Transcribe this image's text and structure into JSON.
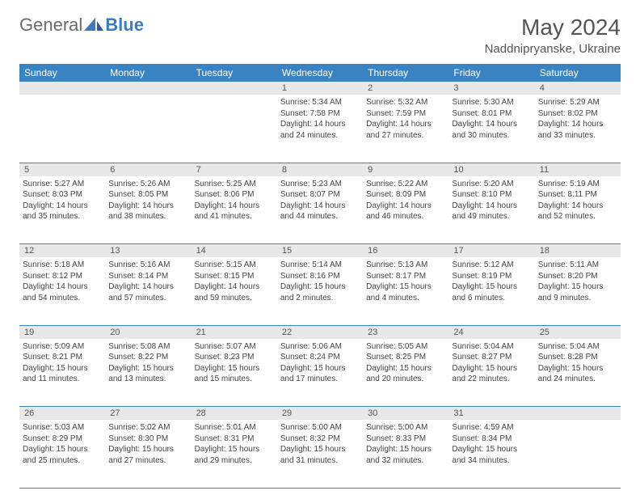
{
  "colors": {
    "header_bg": "#3a83c3",
    "header_text": "#ffffff",
    "daynum_bg": "#e8e8e8",
    "daynum_text": "#555555",
    "border": "#3a83c3",
    "body_text": "#444444",
    "logo_gray": "#6b6b6b",
    "logo_blue": "#3a7cbf"
  },
  "logo": {
    "part1": "General",
    "part2": "Blue"
  },
  "title": "May 2024",
  "location": "Naddnipryanske, Ukraine",
  "days_of_week": [
    "Sunday",
    "Monday",
    "Tuesday",
    "Wednesday",
    "Thursday",
    "Friday",
    "Saturday"
  ],
  "weeks": [
    [
      null,
      null,
      null,
      {
        "n": "1",
        "sr": "Sunrise: 5:34 AM",
        "ss": "Sunset: 7:58 PM",
        "dl1": "Daylight: 14 hours",
        "dl2": "and 24 minutes."
      },
      {
        "n": "2",
        "sr": "Sunrise: 5:32 AM",
        "ss": "Sunset: 7:59 PM",
        "dl1": "Daylight: 14 hours",
        "dl2": "and 27 minutes."
      },
      {
        "n": "3",
        "sr": "Sunrise: 5:30 AM",
        "ss": "Sunset: 8:01 PM",
        "dl1": "Daylight: 14 hours",
        "dl2": "and 30 minutes."
      },
      {
        "n": "4",
        "sr": "Sunrise: 5:29 AM",
        "ss": "Sunset: 8:02 PM",
        "dl1": "Daylight: 14 hours",
        "dl2": "and 33 minutes."
      }
    ],
    [
      {
        "n": "5",
        "sr": "Sunrise: 5:27 AM",
        "ss": "Sunset: 8:03 PM",
        "dl1": "Daylight: 14 hours",
        "dl2": "and 35 minutes."
      },
      {
        "n": "6",
        "sr": "Sunrise: 5:26 AM",
        "ss": "Sunset: 8:05 PM",
        "dl1": "Daylight: 14 hours",
        "dl2": "and 38 minutes."
      },
      {
        "n": "7",
        "sr": "Sunrise: 5:25 AM",
        "ss": "Sunset: 8:06 PM",
        "dl1": "Daylight: 14 hours",
        "dl2": "and 41 minutes."
      },
      {
        "n": "8",
        "sr": "Sunrise: 5:23 AM",
        "ss": "Sunset: 8:07 PM",
        "dl1": "Daylight: 14 hours",
        "dl2": "and 44 minutes."
      },
      {
        "n": "9",
        "sr": "Sunrise: 5:22 AM",
        "ss": "Sunset: 8:09 PM",
        "dl1": "Daylight: 14 hours",
        "dl2": "and 46 minutes."
      },
      {
        "n": "10",
        "sr": "Sunrise: 5:20 AM",
        "ss": "Sunset: 8:10 PM",
        "dl1": "Daylight: 14 hours",
        "dl2": "and 49 minutes."
      },
      {
        "n": "11",
        "sr": "Sunrise: 5:19 AM",
        "ss": "Sunset: 8:11 PM",
        "dl1": "Daylight: 14 hours",
        "dl2": "and 52 minutes."
      }
    ],
    [
      {
        "n": "12",
        "sr": "Sunrise: 5:18 AM",
        "ss": "Sunset: 8:12 PM",
        "dl1": "Daylight: 14 hours",
        "dl2": "and 54 minutes."
      },
      {
        "n": "13",
        "sr": "Sunrise: 5:16 AM",
        "ss": "Sunset: 8:14 PM",
        "dl1": "Daylight: 14 hours",
        "dl2": "and 57 minutes."
      },
      {
        "n": "14",
        "sr": "Sunrise: 5:15 AM",
        "ss": "Sunset: 8:15 PM",
        "dl1": "Daylight: 14 hours",
        "dl2": "and 59 minutes."
      },
      {
        "n": "15",
        "sr": "Sunrise: 5:14 AM",
        "ss": "Sunset: 8:16 PM",
        "dl1": "Daylight: 15 hours",
        "dl2": "and 2 minutes."
      },
      {
        "n": "16",
        "sr": "Sunrise: 5:13 AM",
        "ss": "Sunset: 8:17 PM",
        "dl1": "Daylight: 15 hours",
        "dl2": "and 4 minutes."
      },
      {
        "n": "17",
        "sr": "Sunrise: 5:12 AM",
        "ss": "Sunset: 8:19 PM",
        "dl1": "Daylight: 15 hours",
        "dl2": "and 6 minutes."
      },
      {
        "n": "18",
        "sr": "Sunrise: 5:11 AM",
        "ss": "Sunset: 8:20 PM",
        "dl1": "Daylight: 15 hours",
        "dl2": "and 9 minutes."
      }
    ],
    [
      {
        "n": "19",
        "sr": "Sunrise: 5:09 AM",
        "ss": "Sunset: 8:21 PM",
        "dl1": "Daylight: 15 hours",
        "dl2": "and 11 minutes."
      },
      {
        "n": "20",
        "sr": "Sunrise: 5:08 AM",
        "ss": "Sunset: 8:22 PM",
        "dl1": "Daylight: 15 hours",
        "dl2": "and 13 minutes."
      },
      {
        "n": "21",
        "sr": "Sunrise: 5:07 AM",
        "ss": "Sunset: 8:23 PM",
        "dl1": "Daylight: 15 hours",
        "dl2": "and 15 minutes."
      },
      {
        "n": "22",
        "sr": "Sunrise: 5:06 AM",
        "ss": "Sunset: 8:24 PM",
        "dl1": "Daylight: 15 hours",
        "dl2": "and 17 minutes."
      },
      {
        "n": "23",
        "sr": "Sunrise: 5:05 AM",
        "ss": "Sunset: 8:25 PM",
        "dl1": "Daylight: 15 hours",
        "dl2": "and 20 minutes."
      },
      {
        "n": "24",
        "sr": "Sunrise: 5:04 AM",
        "ss": "Sunset: 8:27 PM",
        "dl1": "Daylight: 15 hours",
        "dl2": "and 22 minutes."
      },
      {
        "n": "25",
        "sr": "Sunrise: 5:04 AM",
        "ss": "Sunset: 8:28 PM",
        "dl1": "Daylight: 15 hours",
        "dl2": "and 24 minutes."
      }
    ],
    [
      {
        "n": "26",
        "sr": "Sunrise: 5:03 AM",
        "ss": "Sunset: 8:29 PM",
        "dl1": "Daylight: 15 hours",
        "dl2": "and 25 minutes."
      },
      {
        "n": "27",
        "sr": "Sunrise: 5:02 AM",
        "ss": "Sunset: 8:30 PM",
        "dl1": "Daylight: 15 hours",
        "dl2": "and 27 minutes."
      },
      {
        "n": "28",
        "sr": "Sunrise: 5:01 AM",
        "ss": "Sunset: 8:31 PM",
        "dl1": "Daylight: 15 hours",
        "dl2": "and 29 minutes."
      },
      {
        "n": "29",
        "sr": "Sunrise: 5:00 AM",
        "ss": "Sunset: 8:32 PM",
        "dl1": "Daylight: 15 hours",
        "dl2": "and 31 minutes."
      },
      {
        "n": "30",
        "sr": "Sunrise: 5:00 AM",
        "ss": "Sunset: 8:33 PM",
        "dl1": "Daylight: 15 hours",
        "dl2": "and 32 minutes."
      },
      {
        "n": "31",
        "sr": "Sunrise: 4:59 AM",
        "ss": "Sunset: 8:34 PM",
        "dl1": "Daylight: 15 hours",
        "dl2": "and 34 minutes."
      },
      null
    ]
  ]
}
